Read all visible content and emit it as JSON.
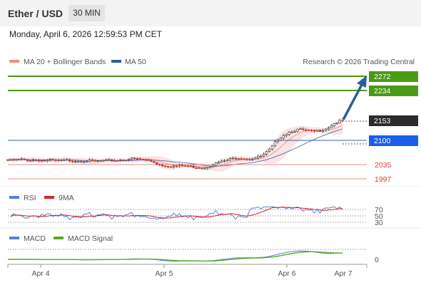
{
  "header": {
    "title": "Ether / USD",
    "timeframe": "30 MIN"
  },
  "datetime": "Monday, April 6, 2026 12:59:53 PM CET",
  "legend": {
    "ma20": "MA 20 + Bollinger Bands",
    "ma50": "MA 50",
    "credit": "Research © 2026 Trading Central"
  },
  "levels": {
    "r2": "2272",
    "r1": "2234",
    "last": "2153",
    "pivot": "2100",
    "s1": "2035",
    "s2": "1997"
  },
  "rsi": {
    "label": "RSI",
    "ma_label": "9MA",
    "ticks": [
      "70",
      "50",
      "30"
    ]
  },
  "macd": {
    "label": "MACD",
    "signal_label": "MACD Signal",
    "tick": "0"
  },
  "x_axis": {
    "ticks": [
      "Apr 4",
      "Apr 5",
      "Apr 6",
      "Apr 7"
    ]
  },
  "colors": {
    "resistance": "#4a9a16",
    "pivot": "#1a5fe8",
    "last": "#2b2b2b",
    "support": "#e03b3b",
    "ma20": "#e88",
    "ma50": "#2d5d9a",
    "rsi": "#5b7fd6",
    "rsi_ma": "#d9232a",
    "macd": "#5b7fd6",
    "macd_signal": "#5aa822",
    "arrow": "#2d5d9a"
  },
  "chart_data": {
    "type": "candlestick",
    "x_ticks": [
      "Apr 4",
      "Apr 5",
      "Apr 6",
      "Apr 7"
    ],
    "price_levels": {
      "resistance2": 2272,
      "resistance1": 2234,
      "last": 2153,
      "pivot": 2100,
      "support1": 2035,
      "support2": 1997
    },
    "price_path": [
      2047,
      2049,
      2050,
      2048,
      2049,
      2047,
      2048,
      2046,
      2048,
      2047,
      2046,
      2047,
      2045,
      2046,
      2047,
      2048,
      2050,
      2052,
      2051,
      2048,
      2044,
      2035,
      2033,
      2032,
      2034,
      2031,
      2030,
      2028,
      2036,
      2042,
      2047,
      2053,
      2055,
      2051,
      2054,
      2060,
      2076,
      2102,
      2117,
      2126,
      2130,
      2127,
      2124,
      2128,
      2135,
      2148,
      2153
    ],
    "rsi_ticks": [
      70,
      50,
      30
    ]
  }
}
